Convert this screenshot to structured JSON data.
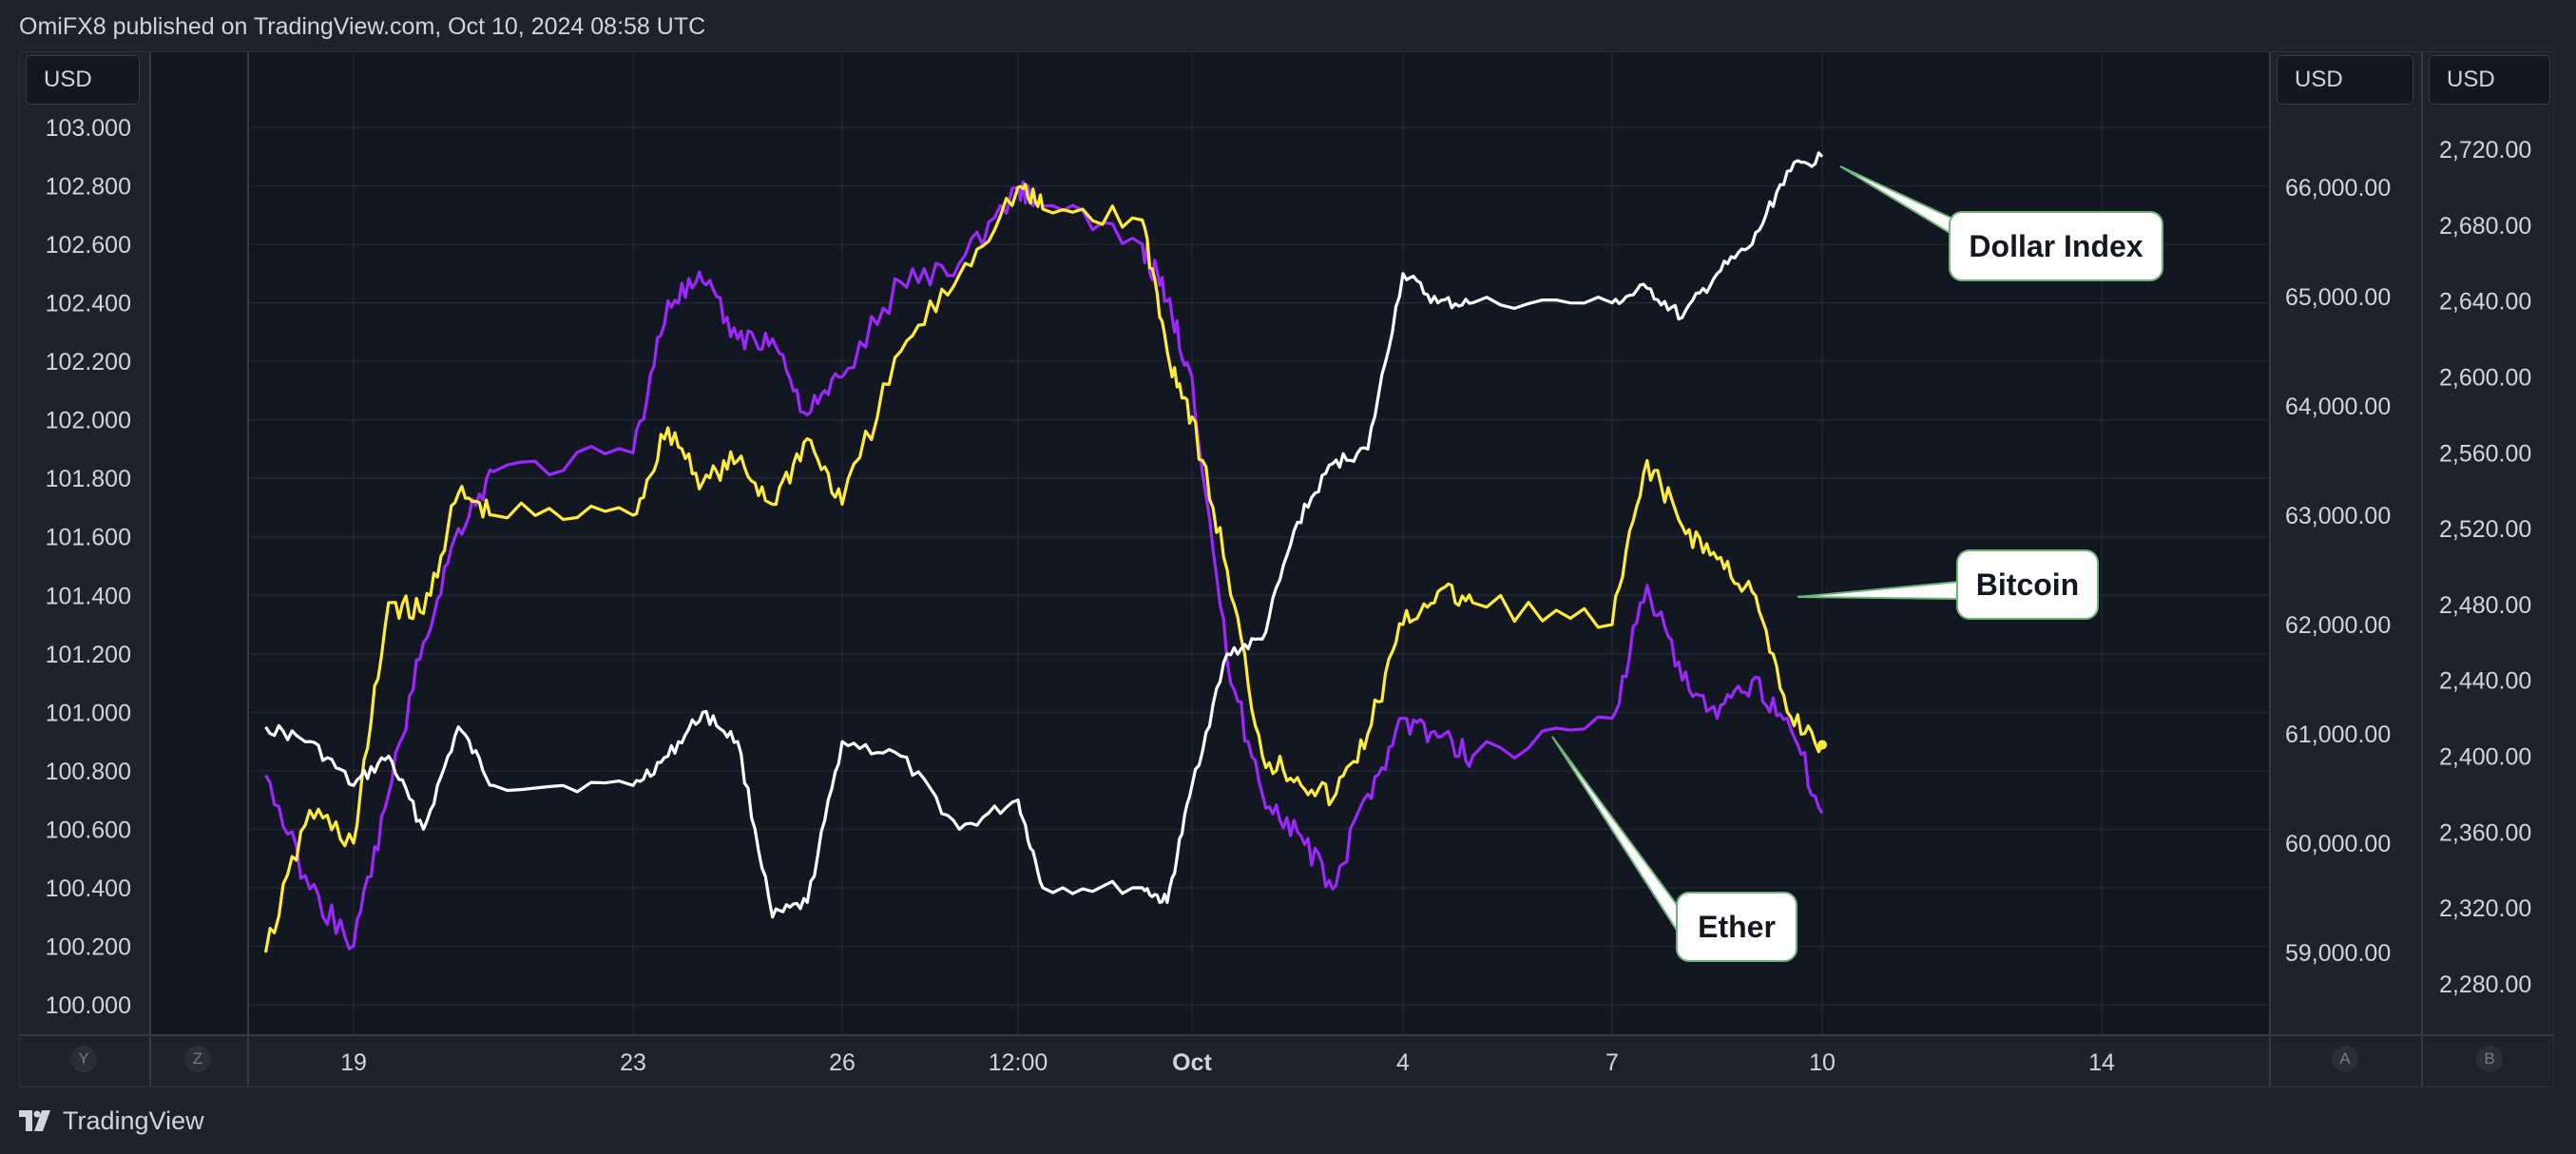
{
  "header": {
    "publisher": "OmiFX8 published on TradingView.com, Oct 10, 2024 08:58 UTC"
  },
  "footer": {
    "brand": "TradingView"
  },
  "axis_units": {
    "left": "USD",
    "right_btc": "USD",
    "right_eth": "USD"
  },
  "corner_buttons": {
    "y": "Y",
    "z": "Z",
    "a": "A",
    "b": "B"
  },
  "colors": {
    "dollar_index": "#ffffff",
    "bitcoin": "#ffeb3b",
    "ether": "#9c27ff",
    "background": "#131722",
    "grid": "#2a2e39",
    "callout_border": "#6fb57a"
  },
  "chart_data": {
    "type": "line",
    "x_tick_labels": [
      "19",
      "23",
      "26",
      "12:00",
      "Oct",
      "4",
      "7",
      "10",
      "14"
    ],
    "y_left": {
      "unit": "USD",
      "range": [
        100.0,
        103.0
      ],
      "ticks": [
        "103.000",
        "102.800",
        "102.600",
        "102.400",
        "102.200",
        "102.000",
        "101.800",
        "101.600",
        "101.400",
        "101.200",
        "101.000",
        "100.800",
        "100.600",
        "100.400",
        "100.200",
        "100.000"
      ]
    },
    "y_right_bitcoin": {
      "unit": "USD",
      "range": [
        59000,
        66000
      ],
      "ticks": [
        "66,000.00",
        "65,000.00",
        "64,000.00",
        "63,000.00",
        "62,000.00",
        "61,000.00",
        "60,000.00",
        "59,000.00"
      ]
    },
    "y_right_ether": {
      "unit": "USD",
      "range": [
        2280,
        2720
      ],
      "ticks": [
        "2,720.00",
        "2,680.00",
        "2,640.00",
        "2,600.00",
        "2,560.00",
        "2,520.00",
        "2,480.00",
        "2,440.00",
        "2,400.00",
        "2,360.00",
        "2,320.00",
        "2,280.00"
      ]
    },
    "series": [
      {
        "name": "Dollar Index",
        "color": "#ffffff",
        "axis": "left",
        "x": [
          "Sep 18",
          "Sep 18 12:00",
          "Sep 19",
          "Sep 19 12:00",
          "Sep 20",
          "Sep 20 12:00",
          "Sep 21",
          "Sep 23",
          "Sep 23 12:00",
          "Sep 24",
          "Sep 24 12:00",
          "Sep 25",
          "Sep 25 12:00",
          "Sep 26",
          "Sep 26 12:00",
          "Sep 27",
          "Sep 27 12:00",
          "Sep 28",
          "Sep 30",
          "Sep 30 12:00",
          "Oct 1",
          "Oct 1 12:00",
          "Oct 2",
          "Oct 2 12:00",
          "Oct 3",
          "Oct 3 12:00",
          "Oct 4",
          "Oct 4 12:00",
          "Oct 5",
          "Oct 7",
          "Oct 7 12:00",
          "Oct 8",
          "Oct 8 12:00",
          "Oct 9",
          "Oct 9 12:00",
          "Oct 10"
        ],
        "values": [
          100.95,
          100.9,
          100.75,
          100.85,
          100.6,
          100.95,
          100.75,
          100.75,
          100.85,
          101.0,
          100.9,
          100.3,
          100.35,
          100.9,
          100.85,
          100.6,
          100.7,
          100.4,
          100.4,
          100.35,
          100.75,
          101.2,
          101.25,
          101.65,
          101.85,
          101.9,
          102.5,
          102.4,
          102.4,
          102.4,
          102.45,
          102.35,
          102.5,
          102.6,
          102.85,
          102.9
        ]
      },
      {
        "name": "Bitcoin",
        "color": "#ffeb3b",
        "axis": "right_bitcoin",
        "x": [
          "Sep 18",
          "Sep 18 12:00",
          "Sep 19",
          "Sep 19 12:00",
          "Sep 20",
          "Sep 20 12:00",
          "Sep 21",
          "Sep 23",
          "Sep 23 12:00",
          "Sep 24",
          "Sep 24 12:00",
          "Sep 25",
          "Sep 25 12:00",
          "Sep 26",
          "Sep 26 12:00",
          "Sep 27",
          "Sep 27 12:00",
          "Sep 28",
          "Sep 30",
          "Sep 30 12:00",
          "Oct 1",
          "Oct 1 12:00",
          "Oct 2",
          "Oct 2 12:00",
          "Oct 3",
          "Oct 3 12:00",
          "Oct 4",
          "Oct 4 12:00",
          "Oct 5",
          "Oct 7",
          "Oct 7 12:00",
          "Oct 8",
          "Oct 8 12:00",
          "Oct 9",
          "Oct 9 12:00",
          "Oct 10"
        ],
        "values": [
          59000,
          60300,
          60000,
          62200,
          62100,
          63200,
          63000,
          63000,
          63800,
          63300,
          63500,
          63100,
          63700,
          63100,
          64500,
          65200,
          66000,
          65800,
          65700,
          64500,
          63900,
          62500,
          60800,
          60600,
          60400,
          61000,
          62000,
          62300,
          62200,
          62000,
          63500,
          62900,
          62600,
          62300,
          61200,
          60900
        ]
      },
      {
        "name": "Ether",
        "color": "#9c27ff",
        "axis": "right_ether",
        "x": [
          "Sep 18",
          "Sep 18 12:00",
          "Sep 19",
          "Sep 19 12:00",
          "Sep 20",
          "Sep 20 12:00",
          "Sep 21",
          "Sep 23",
          "Sep 23 12:00",
          "Sep 24",
          "Sep 24 12:00",
          "Sep 25",
          "Sep 25 12:00",
          "Sep 26",
          "Sep 26 12:00",
          "Sep 27",
          "Sep 27 12:00",
          "Sep 28",
          "Sep 30",
          "Sep 30 12:00",
          "Oct 1",
          "Oct 1 12:00",
          "Oct 2",
          "Oct 2 12:00",
          "Oct 3",
          "Oct 3 12:00",
          "Oct 4",
          "Oct 4 12:00",
          "Oct 5",
          "Oct 7",
          "Oct 7 12:00",
          "Oct 8",
          "Oct 8 12:00",
          "Oct 9",
          "Oct 9 12:00",
          "Oct 10"
        ],
        "values": [
          2390,
          2330,
          2300,
          2380,
          2460,
          2520,
          2550,
          2560,
          2640,
          2650,
          2620,
          2620,
          2580,
          2600,
          2650,
          2660,
          2700,
          2690,
          2670,
          2640,
          2600,
          2450,
          2380,
          2360,
          2330,
          2380,
          2420,
          2410,
          2400,
          2420,
          2490,
          2440,
          2420,
          2440,
          2420,
          2370
        ]
      }
    ],
    "annotations": [
      "Dollar Index",
      "Bitcoin",
      "Ether"
    ],
    "grid": true
  }
}
